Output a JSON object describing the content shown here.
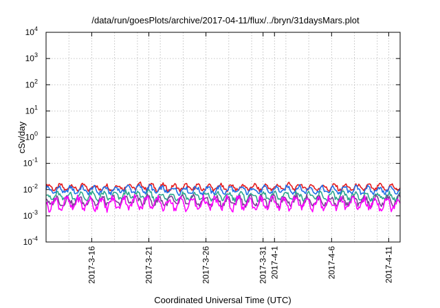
{
  "chart_data": {
    "type": "line",
    "title": "/data/run/goesPlots/archive/2017-04-11/flux/../bryn/31daysMars.plot",
    "xlabel": "Coordinated Universal Time (UTC)",
    "ylabel": "cSv/day",
    "y_scale": "log",
    "ylim": [
      0.0001,
      10000
    ],
    "y_ticks": [
      {
        "base": "10",
        "exp": "-4",
        "value": 0.0001
      },
      {
        "base": "10",
        "exp": "-3",
        "value": 0.001
      },
      {
        "base": "10",
        "exp": "-2",
        "value": 0.01
      },
      {
        "base": "10",
        "exp": "-1",
        "value": 0.1
      },
      {
        "base": "10",
        "exp": "0",
        "value": 1
      },
      {
        "base": "10",
        "exp": "1",
        "value": 10
      },
      {
        "base": "10",
        "exp": "2",
        "value": 100
      },
      {
        "base": "10",
        "exp": "3",
        "value": 1000
      },
      {
        "base": "10",
        "exp": "4",
        "value": 10000
      }
    ],
    "xlim": [
      "2017-03-12",
      "2017-04-12"
    ],
    "x_tick_labels": [
      {
        "label": "2017-3-16",
        "date": "2017-03-16"
      },
      {
        "label": "2017-3-21",
        "date": "2017-03-21"
      },
      {
        "label": "2017-3-26",
        "date": "2017-03-26"
      },
      {
        "label": "2017-3-31",
        "date": "2017-03-31"
      },
      {
        "label": "2017-4-1",
        "date": "2017-04-01"
      },
      {
        "label": "2017-4-6",
        "date": "2017-04-06"
      },
      {
        "label": "2017-4-11",
        "date": "2017-04-11"
      }
    ],
    "grid": true,
    "series": [
      {
        "color": "#e41a1c",
        "base": 0.012,
        "amp": 0.18
      },
      {
        "color": "#1f6fe8",
        "base": 0.0095,
        "amp": 0.2
      },
      {
        "color": "#2ca58d",
        "base": 0.0055,
        "amp": 0.22
      },
      {
        "color": "#7b3f98",
        "base": 0.0036,
        "amp": 0.26
      },
      {
        "color": "#ff00ff",
        "base": 0.0029,
        "amp": 0.34
      }
    ]
  }
}
